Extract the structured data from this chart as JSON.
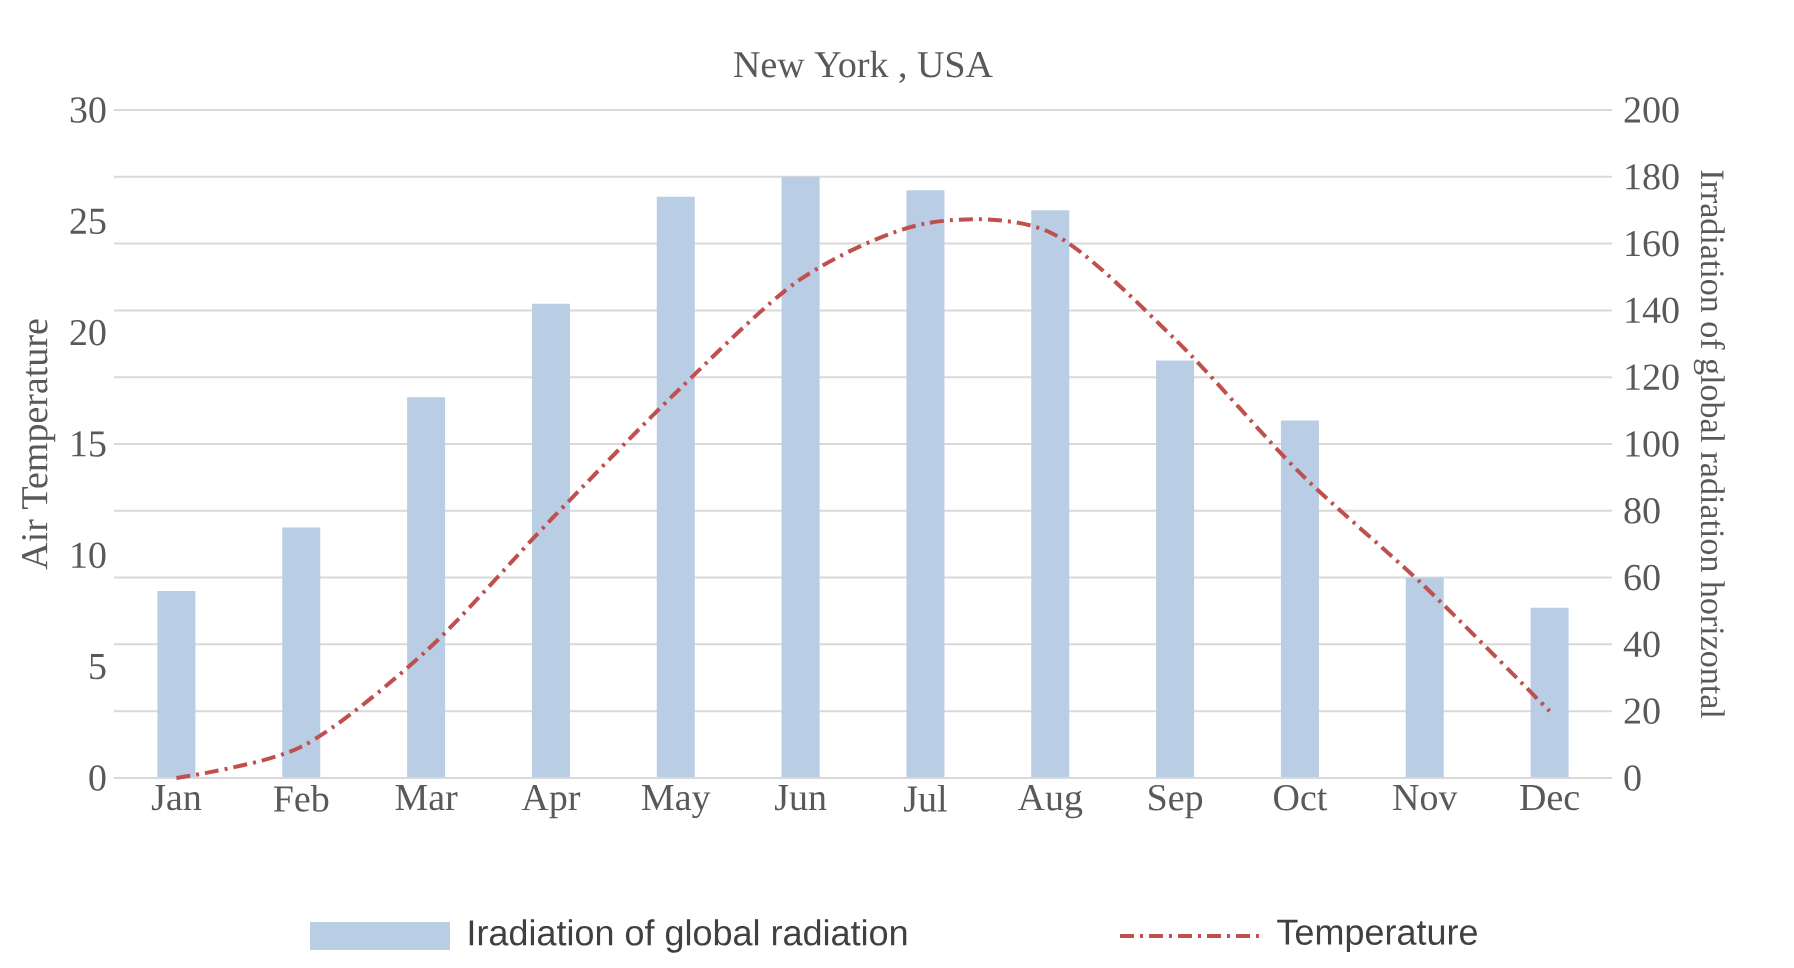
{
  "chart_data": {
    "type": "bar",
    "title": "New York , USA",
    "categories": [
      "Jan",
      "Feb",
      "Mar",
      "Apr",
      "May",
      "Jun",
      "Jul",
      "Aug",
      "Sep",
      "Oct",
      "Nov",
      "Dec"
    ],
    "ylabel": "Air Temperature",
    "y2label": "Irradiation of global radiation horizontal",
    "ylim": [
      0,
      30
    ],
    "yticks": [
      0,
      5,
      10,
      15,
      20,
      25,
      30
    ],
    "y2lim": [
      0,
      200
    ],
    "y2ticks": [
      0,
      20,
      40,
      60,
      80,
      100,
      120,
      140,
      160,
      180,
      200
    ],
    "grid": "y",
    "legend": "bottom",
    "series": [
      {
        "name": "Iradiation of global radiation",
        "axis": "y2",
        "color": "#b9cde5",
        "values": [
          56,
          75,
          114,
          142,
          174,
          180,
          176,
          170,
          125,
          107,
          60,
          51
        ]
      },
      {
        "name": "Temperature",
        "type": "line",
        "axis": "y",
        "color": "#c0504d",
        "line_style": "dashdot",
        "marker": "none",
        "values": [
          0,
          1.4,
          5.7,
          11.6,
          17.3,
          22.4,
          24.9,
          24.5,
          19.7,
          13.7,
          8.6,
          3.0
        ]
      }
    ]
  }
}
